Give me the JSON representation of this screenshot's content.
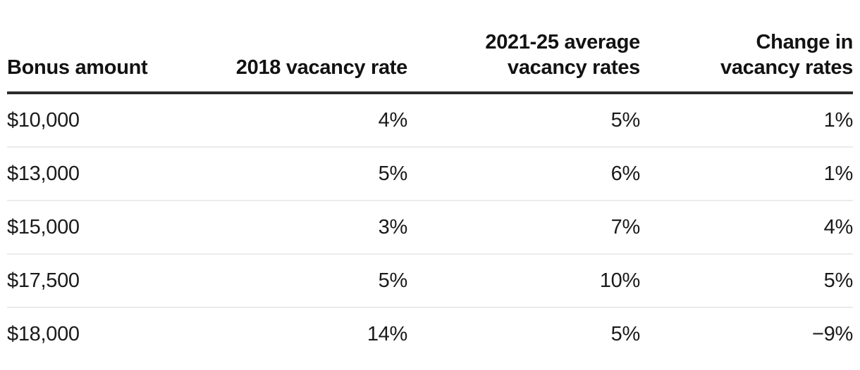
{
  "table": {
    "display_columns": [
      {
        "label": "Bonus amount",
        "align": "left"
      },
      {
        "label": "2018 vacancy rate",
        "align": "right"
      },
      {
        "label": "2021-25 average\nvacancy rates",
        "align": "right"
      },
      {
        "label": "Change in\nvacancy rates",
        "align": "right"
      }
    ]
  },
  "chart_data": {
    "type": "table",
    "columns": [
      "Bonus amount",
      "2018 vacancy rate",
      "2021-25 average vacancy rates",
      "Change in vacancy rates"
    ],
    "rows": [
      [
        "$10,000",
        "4%",
        "5%",
        "1%"
      ],
      [
        "$13,000",
        "5%",
        "6%",
        "1%"
      ],
      [
        "$15,000",
        "3%",
        "7%",
        "4%"
      ],
      [
        "$17,500",
        "5%",
        "10%",
        "5%"
      ],
      [
        "$18,000",
        "14%",
        "5%",
        "−9%"
      ]
    ],
    "bonus_amounts": [
      "$10,000",
      "$13,000",
      "$15,000",
      "$17,500",
      "$18,000"
    ],
    "vacancy_rate_2018_pct": [
      4,
      5,
      3,
      5,
      14
    ],
    "vacancy_rate_2021_25_avg_pct": [
      5,
      6,
      7,
      10,
      5
    ],
    "change_in_vacancy_rates_pct": [
      1,
      1,
      4,
      5,
      -9
    ]
  },
  "colors": {
    "background": "#ffffff",
    "header_text": "#121212",
    "body_text": "#1a1a1a",
    "header_rule": "#2b2b2b",
    "row_divider": "#ebebeb"
  }
}
